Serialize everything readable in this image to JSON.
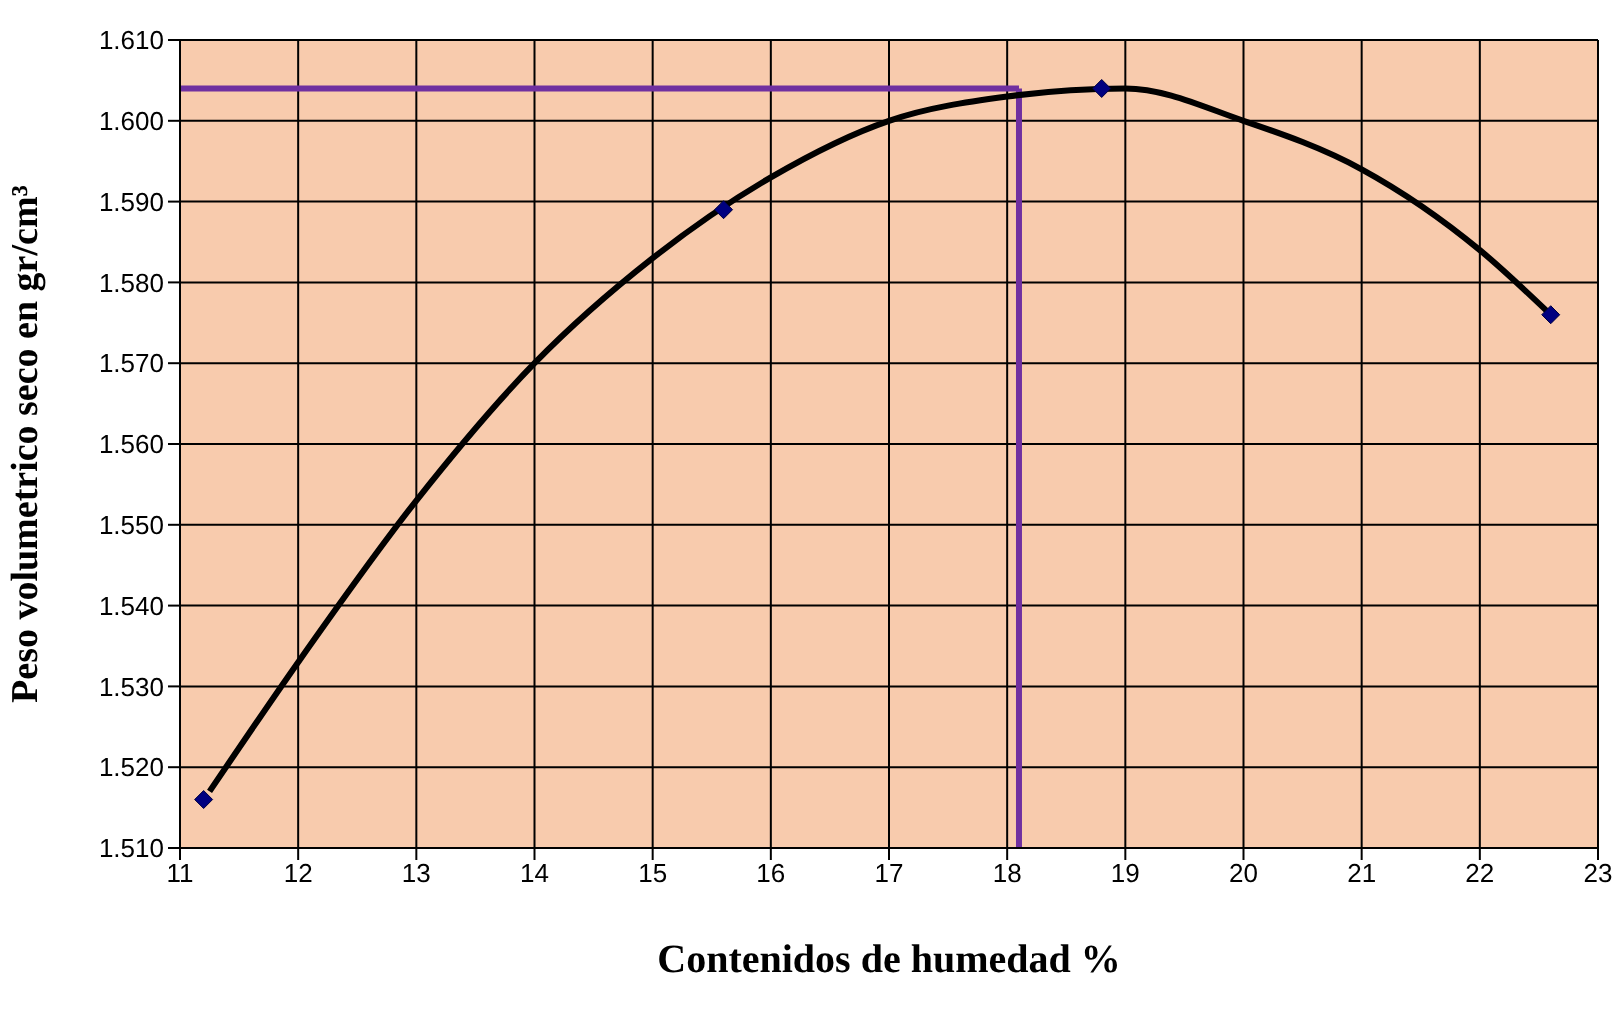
{
  "chart_data": {
    "type": "scatter",
    "xlabel": "Contenidos de humedad %",
    "ylabel": "Peso volumetrico seco en gr/cm³",
    "xlim": [
      11,
      23
    ],
    "xticks": [
      11,
      12,
      13,
      14,
      15,
      16,
      17,
      18,
      19,
      20,
      21,
      22,
      23
    ],
    "ylim": [
      1.51,
      1.61
    ],
    "yticks": [
      {
        "value": 1.51,
        "label": "1.510"
      },
      {
        "value": 1.52,
        "label": "1.520"
      },
      {
        "value": 1.53,
        "label": "1.530"
      },
      {
        "value": 1.54,
        "label": "1.540"
      },
      {
        "value": 1.55,
        "label": "1.550"
      },
      {
        "value": 1.56,
        "label": "1.560"
      },
      {
        "value": 1.57,
        "label": "1.570"
      },
      {
        "value": 1.58,
        "label": "1.580"
      },
      {
        "value": 1.59,
        "label": "1.590"
      },
      {
        "value": 1.6,
        "label": "1.600"
      },
      {
        "value": 1.61,
        "label": "1.610"
      }
    ],
    "grid": true,
    "series": [
      {
        "type": "line",
        "color": "#000000",
        "marker": "none",
        "x": [
          11.25,
          12,
          13,
          14,
          15,
          16,
          17,
          18,
          19,
          20,
          21,
          22,
          22.6
        ],
        "values": [
          1.517,
          1.533,
          1.553,
          1.57,
          1.583,
          1.593,
          1.6,
          1.603,
          1.604,
          1.6,
          1.594,
          1.584,
          1.576
        ]
      },
      {
        "color": "#000080",
        "marker": "diamond",
        "x": [
          11.2,
          15.6,
          18.8,
          22.6
        ],
        "values": [
          1.516,
          1.589,
          1.604,
          1.576
        ]
      }
    ],
    "ref_lines": [
      {
        "axis": "y",
        "value": 1.604,
        "color": "#7030a0"
      },
      {
        "axis": "x",
        "value": 18.1,
        "color": "#7030a0"
      }
    ]
  }
}
